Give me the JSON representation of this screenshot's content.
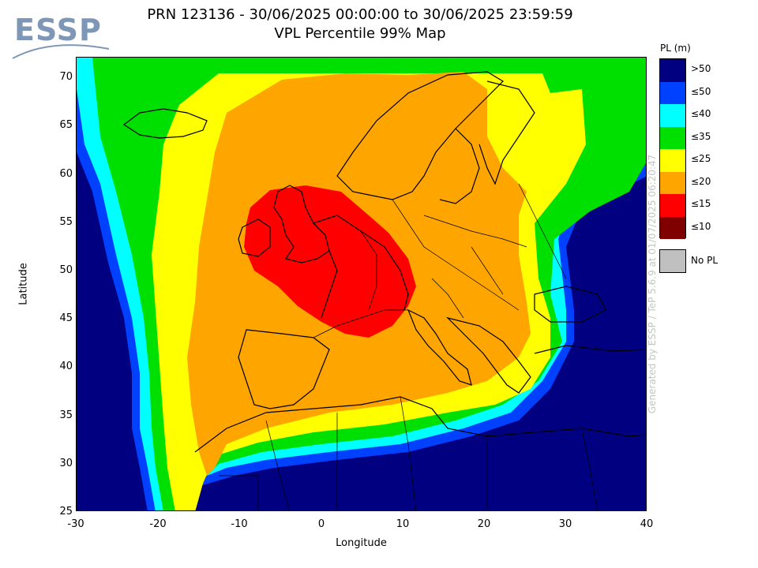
{
  "logo": {
    "text": "ESSP"
  },
  "header": {
    "title": "PRN 123136 - 30/06/2025 00:00:00 to 30/06/2025 23:59:59",
    "subtitle": "VPL Percentile 99% Map"
  },
  "axes": {
    "xlabel": "Longitude",
    "ylabel": "Latitude",
    "xticks": [
      "-30",
      "-20",
      "-10",
      "0",
      "10",
      "20",
      "30",
      "40"
    ],
    "yticks": [
      "70",
      "65",
      "60",
      "55",
      "50",
      "45",
      "40",
      "35",
      "30",
      "25"
    ],
    "xlim": [
      -30,
      40
    ],
    "ylim": [
      25,
      72
    ]
  },
  "legend": {
    "title": "PL (m)",
    "items": [
      {
        "label": ">50",
        "color": "#000080"
      },
      {
        "label": "≤50",
        "color": "#0040ff"
      },
      {
        "label": "≤40",
        "color": "#00ffff"
      },
      {
        "label": "≤35",
        "color": "#00e000"
      },
      {
        "label": "≤25",
        "color": "#ffff00"
      },
      {
        "label": "≤20",
        "color": "#ffa500"
      },
      {
        "label": "≤15",
        "color": "#ff0000"
      },
      {
        "label": "≤10",
        "color": "#800000"
      }
    ],
    "nopl_label": "No PL",
    "nopl_color": "#c0c0c0"
  },
  "watermark": "Generated by ESSP / TeP 5.6.9 at 01/07/2025 06:20:47",
  "map": {
    "zones_outer_to_inner": [
      ">50",
      "≤50",
      "≤40",
      "≤35",
      "≤25",
      "≤20",
      "≤15"
    ],
    "max_zone_center": {
      "lon": 3,
      "lat": 50.5
    }
  }
}
